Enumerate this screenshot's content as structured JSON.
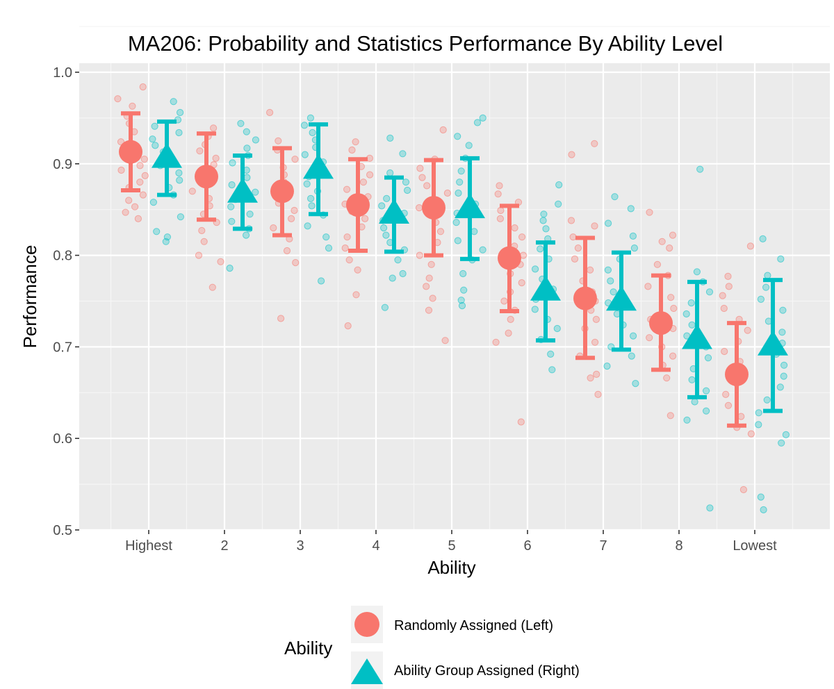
{
  "chart_data": {
    "type": "scatter",
    "title": "MA206: Probability and Statistics Performance By Ability Level",
    "xlabel": "Ability",
    "ylabel": "Performance",
    "categories": [
      "Highest",
      "2",
      "3",
      "4",
      "5",
      "6",
      "7",
      "8",
      "Lowest"
    ],
    "ylim": [
      0.5,
      1.0
    ],
    "yticks": [
      "0.5",
      "0.6",
      "0.7",
      "0.8",
      "0.9",
      "1.0"
    ],
    "grid": true,
    "legend": {
      "title": "Ability",
      "position": "bottom",
      "entries": [
        "Randomly Assigned (Left)",
        "Ability Group Assigned (Right)"
      ]
    },
    "series": [
      {
        "name": "Randomly Assigned (Left)",
        "color": "#F8766D",
        "marker": "circle",
        "means": [
          0.913,
          0.886,
          0.87,
          0.855,
          0.852,
          0.797,
          0.753,
          0.726,
          0.67
        ],
        "lower": [
          0.871,
          0.839,
          0.822,
          0.805,
          0.8,
          0.739,
          0.688,
          0.675,
          0.614
        ],
        "upper": [
          0.955,
          0.933,
          0.917,
          0.905,
          0.904,
          0.854,
          0.819,
          0.778,
          0.726
        ],
        "points": [
          [
            0.984,
            0.971,
            0.963,
            0.952,
            0.944,
            0.935,
            0.924,
            0.918,
            0.911,
            0.905,
            0.898,
            0.893,
            0.887,
            0.88,
            0.874,
            0.866,
            0.86,
            0.853,
            0.847,
            0.84
          ],
          [
            0.939,
            0.93,
            0.921,
            0.914,
            0.906,
            0.899,
            0.892,
            0.885,
            0.878,
            0.87,
            0.862,
            0.854,
            0.845,
            0.836,
            0.827,
            0.815,
            0.8,
            0.793,
            0.765
          ],
          [
            0.956,
            0.925,
            0.915,
            0.905,
            0.896,
            0.888,
            0.88,
            0.872,
            0.865,
            0.857,
            0.849,
            0.84,
            0.83,
            0.818,
            0.805,
            0.792,
            0.731
          ],
          [
            0.924,
            0.915,
            0.906,
            0.897,
            0.888,
            0.88,
            0.872,
            0.864,
            0.856,
            0.848,
            0.84,
            0.831,
            0.82,
            0.808,
            0.795,
            0.784,
            0.757,
            0.723
          ],
          [
            0.937,
            0.905,
            0.895,
            0.885,
            0.876,
            0.868,
            0.86,
            0.852,
            0.844,
            0.836,
            0.826,
            0.814,
            0.8,
            0.79,
            0.775,
            0.766,
            0.753,
            0.74,
            0.707
          ],
          [
            0.876,
            0.867,
            0.858,
            0.849,
            0.84,
            0.83,
            0.82,
            0.81,
            0.8,
            0.79,
            0.78,
            0.77,
            0.76,
            0.75,
            0.74,
            0.73,
            0.715,
            0.705,
            0.618
          ],
          [
            0.922,
            0.91,
            0.838,
            0.832,
            0.82,
            0.808,
            0.796,
            0.784,
            0.772,
            0.76,
            0.75,
            0.74,
            0.73,
            0.72,
            0.705,
            0.69,
            0.67,
            0.666,
            0.648
          ],
          [
            0.847,
            0.822,
            0.815,
            0.808,
            0.79,
            0.778,
            0.766,
            0.754,
            0.742,
            0.73,
            0.72,
            0.71,
            0.7,
            0.69,
            0.68,
            0.666,
            0.625
          ],
          [
            0.81,
            0.777,
            0.766,
            0.756,
            0.742,
            0.73,
            0.718,
            0.706,
            0.695,
            0.684,
            0.672,
            0.66,
            0.648,
            0.636,
            0.624,
            0.612,
            0.605,
            0.544
          ]
        ]
      },
      {
        "name": "Ability Group Assigned (Right)",
        "color": "#00BFC4",
        "marker": "triangle",
        "means": [
          0.906,
          0.868,
          0.894,
          0.845,
          0.851,
          0.761,
          0.75,
          0.708,
          0.701
        ],
        "lower": [
          0.866,
          0.829,
          0.845,
          0.804,
          0.796,
          0.707,
          0.697,
          0.645,
          0.63
        ],
        "upper": [
          0.946,
          0.909,
          0.943,
          0.885,
          0.906,
          0.814,
          0.803,
          0.771,
          0.773
        ],
        "points": [
          [
            0.968,
            0.956,
            0.948,
            0.941,
            0.934,
            0.927,
            0.92,
            0.913,
            0.906,
            0.898,
            0.89,
            0.882,
            0.874,
            0.866,
            0.858,
            0.842,
            0.826,
            0.82,
            0.815
          ],
          [
            0.944,
            0.935,
            0.926,
            0.917,
            0.909,
            0.901,
            0.893,
            0.885,
            0.877,
            0.869,
            0.861,
            0.853,
            0.845,
            0.837,
            0.829,
            0.822,
            0.786
          ],
          [
            0.95,
            0.942,
            0.934,
            0.926,
            0.918,
            0.91,
            0.902,
            0.894,
            0.886,
            0.878,
            0.87,
            0.862,
            0.854,
            0.844,
            0.832,
            0.82,
            0.808,
            0.772
          ],
          [
            0.928,
            0.911,
            0.89,
            0.88,
            0.871,
            0.862,
            0.854,
            0.846,
            0.838,
            0.83,
            0.822,
            0.814,
            0.806,
            0.795,
            0.78,
            0.775,
            0.743
          ],
          [
            0.95,
            0.945,
            0.93,
            0.92,
            0.906,
            0.892,
            0.88,
            0.868,
            0.856,
            0.846,
            0.836,
            0.826,
            0.816,
            0.806,
            0.795,
            0.78,
            0.762,
            0.751,
            0.745
          ],
          [
            0.877,
            0.856,
            0.845,
            0.838,
            0.829,
            0.818,
            0.807,
            0.796,
            0.785,
            0.774,
            0.763,
            0.752,
            0.741,
            0.73,
            0.72,
            0.708,
            0.692,
            0.675
          ],
          [
            0.864,
            0.851,
            0.835,
            0.821,
            0.808,
            0.796,
            0.784,
            0.772,
            0.76,
            0.748,
            0.736,
            0.724,
            0.712,
            0.7,
            0.69,
            0.679,
            0.66
          ],
          [
            0.894,
            0.782,
            0.771,
            0.76,
            0.748,
            0.736,
            0.724,
            0.712,
            0.7,
            0.688,
            0.676,
            0.664,
            0.652,
            0.64,
            0.63,
            0.62,
            0.524
          ],
          [
            0.818,
            0.796,
            0.778,
            0.765,
            0.752,
            0.74,
            0.728,
            0.716,
            0.704,
            0.692,
            0.68,
            0.668,
            0.656,
            0.642,
            0.628,
            0.615,
            0.604,
            0.595,
            0.536,
            0.522
          ]
        ]
      }
    ]
  }
}
